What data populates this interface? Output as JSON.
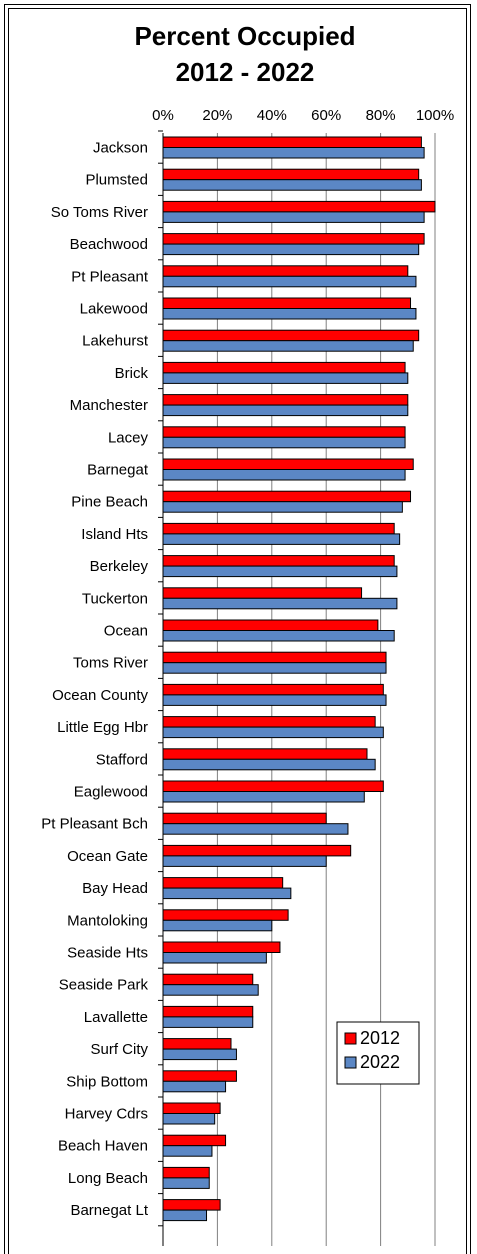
{
  "chart_data": {
    "type": "bar",
    "orientation": "horizontal",
    "title": "Percent Occupied",
    "subtitle": "2012 - 2022",
    "xlim": [
      0,
      100
    ],
    "x_ticks": [
      "0%",
      "20%",
      "40%",
      "60%",
      "80%",
      "100%"
    ],
    "grid": true,
    "legend_position": "bottom-right",
    "categories": [
      "Jackson",
      "Plumsted",
      "So Toms River",
      "Beachwood",
      "Pt Pleasant",
      "Lakewood",
      "Lakehurst",
      "Brick",
      "Manchester",
      "Lacey",
      "Barnegat",
      "Pine Beach",
      "Island Hts",
      "Berkeley",
      "Tuckerton",
      "Ocean",
      "Toms River",
      "Ocean County",
      "Little Egg Hbr",
      "Stafford",
      "Eaglewood",
      "Pt Pleasant Bch",
      "Ocean Gate",
      "Bay Head",
      "Mantoloking",
      "Seaside Hts",
      "Seaside Park",
      "Lavallette",
      "Surf City",
      "Ship Bottom",
      "Harvey Cdrs",
      "Beach Haven",
      "Long Beach",
      "Barnegat Lt"
    ],
    "series": [
      {
        "name": "2012",
        "color": "#ff0000",
        "values": [
          95,
          94,
          100,
          96,
          90,
          91,
          94,
          89,
          90,
          89,
          92,
          91,
          85,
          85,
          73,
          79,
          82,
          81,
          78,
          75,
          81,
          60,
          69,
          44,
          46,
          43,
          33,
          33,
          25,
          27,
          21,
          23,
          17,
          21
        ]
      },
      {
        "name": "2022",
        "color": "#5b87c5",
        "values": [
          96,
          95,
          96,
          94,
          93,
          93,
          92,
          90,
          90,
          89,
          89,
          88,
          87,
          86,
          86,
          85,
          82,
          82,
          81,
          78,
          74,
          68,
          60,
          47,
          40,
          38,
          35,
          33,
          27,
          23,
          19,
          18,
          17,
          16
        ]
      }
    ]
  }
}
